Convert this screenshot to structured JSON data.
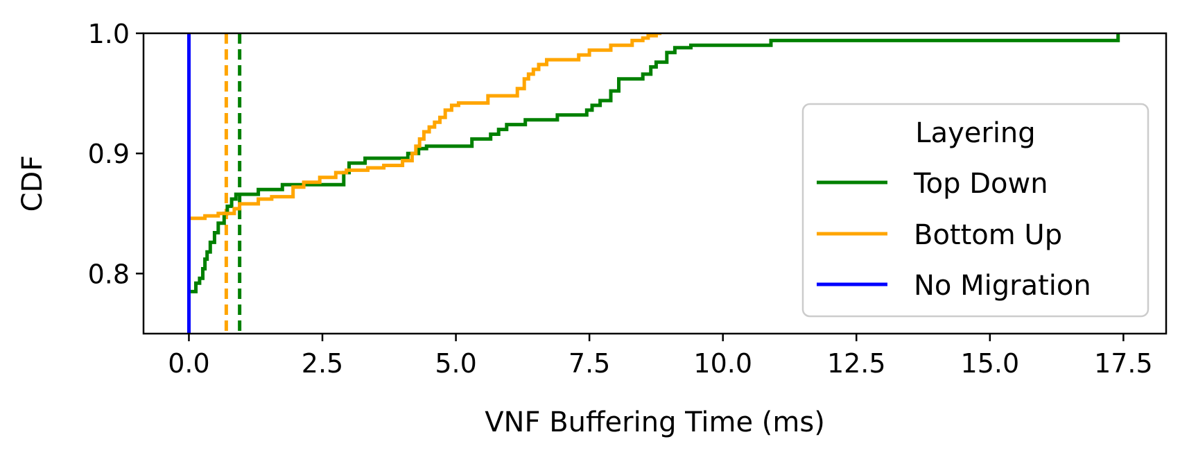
{
  "chart_data": {
    "type": "line",
    "subtype": "step-cdf",
    "title": "",
    "xlabel": "VNF Buffering Time (ms)",
    "ylabel": "CDF",
    "xlim": [
      -0.85,
      18.3
    ],
    "ylim": [
      0.75,
      1.0
    ],
    "x_ticks": [
      0.0,
      2.5,
      5.0,
      7.5,
      10.0,
      12.5,
      15.0,
      17.5
    ],
    "x_tick_labels": [
      "0.0",
      "2.5",
      "5.0",
      "7.5",
      "10.0",
      "12.5",
      "15.0",
      "17.5"
    ],
    "y_ticks": [
      0.8,
      0.9,
      1.0
    ],
    "y_tick_labels": [
      "0.8",
      "0.9",
      "1.0"
    ],
    "grid": false,
    "legend": {
      "title": "Layering",
      "placement": "center-right",
      "entries": [
        "Top Down",
        "Bottom Up",
        "No Migration"
      ]
    },
    "series": [
      {
        "name": "Top Down",
        "color": "#008000",
        "style": "step",
        "x": [
          0.0,
          0.13,
          0.13,
          0.2,
          0.2,
          0.26,
          0.26,
          0.3,
          0.3,
          0.34,
          0.34,
          0.4,
          0.4,
          0.48,
          0.48,
          0.55,
          0.55,
          0.66,
          0.66,
          0.72,
          0.72,
          0.8,
          0.8,
          0.88,
          0.88,
          0.93,
          0.93,
          1.3,
          1.3,
          1.75,
          1.75,
          1.85,
          1.85,
          2.9,
          2.9,
          3.0,
          3.0,
          3.3,
          3.3,
          4.1,
          4.1,
          4.3,
          4.3,
          4.45,
          4.45,
          5.3,
          5.3,
          5.65,
          5.65,
          5.8,
          5.8,
          5.95,
          5.95,
          6.3,
          6.3,
          6.6,
          6.6,
          6.9,
          6.9,
          7.45,
          7.45,
          7.55,
          7.55,
          7.7,
          7.7,
          7.9,
          7.9,
          8.05,
          8.05,
          8.5,
          8.5,
          8.65,
          8.65,
          8.75,
          8.75,
          8.95,
          8.95,
          9.1,
          9.1,
          9.4,
          9.4,
          10.9,
          10.9,
          17.4,
          17.4
        ],
        "y": [
          0.785,
          0.785,
          0.792,
          0.792,
          0.796,
          0.796,
          0.804,
          0.804,
          0.812,
          0.812,
          0.818,
          0.818,
          0.826,
          0.826,
          0.834,
          0.834,
          0.842,
          0.842,
          0.85,
          0.85,
          0.856,
          0.856,
          0.862,
          0.862,
          0.866,
          0.866,
          0.866,
          0.866,
          0.87,
          0.87,
          0.874,
          0.874,
          0.874,
          0.874,
          0.884,
          0.884,
          0.892,
          0.892,
          0.896,
          0.896,
          0.9,
          0.9,
          0.904,
          0.904,
          0.906,
          0.906,
          0.912,
          0.912,
          0.916,
          0.916,
          0.92,
          0.92,
          0.924,
          0.924,
          0.928,
          0.928,
          0.928,
          0.928,
          0.932,
          0.932,
          0.936,
          0.936,
          0.94,
          0.94,
          0.944,
          0.944,
          0.952,
          0.952,
          0.962,
          0.962,
          0.966,
          0.966,
          0.972,
          0.972,
          0.976,
          0.976,
          0.984,
          0.984,
          0.988,
          0.988,
          0.99,
          0.99,
          0.994,
          0.994,
          1.0
        ]
      },
      {
        "name": "Bottom Up",
        "color": "#FFA500",
        "style": "step",
        "x": [
          0.0,
          0.3,
          0.3,
          0.55,
          0.55,
          0.85,
          0.85,
          0.95,
          0.95,
          1.3,
          1.3,
          1.55,
          1.55,
          1.95,
          1.95,
          2.15,
          2.15,
          2.45,
          2.45,
          2.75,
          2.75,
          2.95,
          2.95,
          3.35,
          3.35,
          3.65,
          3.65,
          4.0,
          4.0,
          4.18,
          4.18,
          4.25,
          4.25,
          4.32,
          4.32,
          4.4,
          4.4,
          4.5,
          4.5,
          4.6,
          4.6,
          4.7,
          4.7,
          4.8,
          4.8,
          4.92,
          4.92,
          5.05,
          5.05,
          5.6,
          5.6,
          6.15,
          6.15,
          6.28,
          6.28,
          6.36,
          6.36,
          6.45,
          6.45,
          6.55,
          6.55,
          6.7,
          6.7,
          7.3,
          7.3,
          7.5,
          7.5,
          7.9,
          7.9,
          8.3,
          8.3,
          8.5,
          8.5,
          8.6,
          8.6,
          8.75,
          8.75,
          8.85
        ],
        "y": [
          0.846,
          0.846,
          0.848,
          0.848,
          0.85,
          0.85,
          0.854,
          0.854,
          0.858,
          0.858,
          0.862,
          0.862,
          0.864,
          0.864,
          0.872,
          0.872,
          0.876,
          0.876,
          0.88,
          0.88,
          0.884,
          0.884,
          0.886,
          0.886,
          0.888,
          0.888,
          0.89,
          0.89,
          0.894,
          0.894,
          0.9,
          0.9,
          0.906,
          0.906,
          0.912,
          0.912,
          0.918,
          0.918,
          0.922,
          0.922,
          0.926,
          0.926,
          0.93,
          0.93,
          0.936,
          0.936,
          0.94,
          0.94,
          0.942,
          0.942,
          0.948,
          0.948,
          0.954,
          0.954,
          0.962,
          0.962,
          0.966,
          0.966,
          0.97,
          0.97,
          0.974,
          0.974,
          0.978,
          0.978,
          0.982,
          0.982,
          0.986,
          0.986,
          0.99,
          0.99,
          0.994,
          0.994,
          0.996,
          0.996,
          0.998,
          0.998,
          1.0,
          1.0
        ]
      },
      {
        "name": "No Migration",
        "color": "#0000FF",
        "style": "line",
        "x": [
          0.0,
          0.0
        ],
        "y": [
          0.75,
          1.0
        ]
      }
    ],
    "reference_lines": [
      {
        "series": "Top Down",
        "x": 0.95,
        "color": "#008000",
        "style": "dashed"
      },
      {
        "series": "Bottom Up",
        "x": 0.7,
        "color": "#FFA500",
        "style": "dashed"
      }
    ]
  }
}
